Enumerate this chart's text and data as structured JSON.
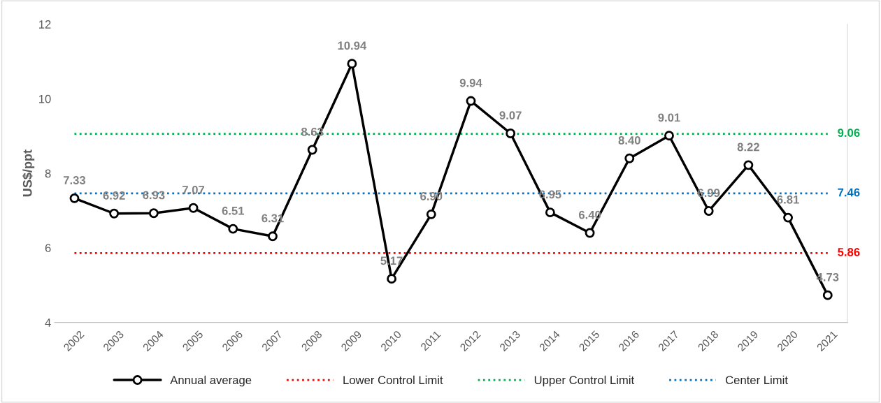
{
  "chart_data": {
    "type": "line",
    "ylabel": "US$/ppt",
    "categories": [
      "2002",
      "2003",
      "2004",
      "2005",
      "2006",
      "2007",
      "2008",
      "2009",
      "2010",
      "2011",
      "2012",
      "2013",
      "2014",
      "2015",
      "2016",
      "2017",
      "2018",
      "2019",
      "2020",
      "2021"
    ],
    "ylim": [
      4,
      12
    ],
    "yticks": [
      4,
      6,
      8,
      10,
      12
    ],
    "grid": false,
    "legend": "bottom",
    "series": [
      {
        "name": "Annual average",
        "color": "#000000",
        "marker": "circle",
        "line_style": "solid",
        "values": [
          7.33,
          6.92,
          6.93,
          7.07,
          6.51,
          6.31,
          8.63,
          10.94,
          5.17,
          6.9,
          9.94,
          9.07,
          6.95,
          6.4,
          8.4,
          9.01,
          6.99,
          8.22,
          6.81,
          4.73
        ],
        "value_labels": [
          "7.33",
          "6.92",
          "6.93",
          "7.07",
          "6.51",
          "6.31",
          "8.63",
          "10.94",
          "5.17",
          "6.90",
          "9.94",
          "9.07",
          "6.95",
          "6.40",
          "8.40",
          "9.01",
          "6.99",
          "8.22",
          "6.81",
          "4.73"
        ]
      },
      {
        "name": "Lower Control Limit",
        "color": "#ff0000",
        "marker": "none",
        "line_style": "dotted",
        "values": [
          5.86,
          5.86,
          5.86,
          5.86,
          5.86,
          5.86,
          5.86,
          5.86,
          5.86,
          5.86,
          5.86,
          5.86,
          5.86,
          5.86,
          5.86,
          5.86,
          5.86,
          5.86,
          5.86,
          5.86
        ],
        "value_labels": [
          null,
          null,
          null,
          null,
          null,
          null,
          null,
          null,
          null,
          null,
          null,
          null,
          null,
          null,
          null,
          null,
          null,
          null,
          null,
          "5.86"
        ]
      },
      {
        "name": "Upper Control Limit",
        "color": "#00b050",
        "marker": "none",
        "line_style": "dotted",
        "values": [
          9.06,
          9.06,
          9.06,
          9.06,
          9.06,
          9.06,
          9.06,
          9.06,
          9.06,
          9.06,
          9.06,
          9.06,
          9.06,
          9.06,
          9.06,
          9.06,
          9.06,
          9.06,
          9.06,
          9.06
        ],
        "value_labels": [
          null,
          null,
          null,
          null,
          null,
          null,
          null,
          null,
          null,
          null,
          null,
          null,
          null,
          null,
          null,
          null,
          null,
          null,
          null,
          "9.06"
        ]
      },
      {
        "name": "Center Limit",
        "color": "#0070c0",
        "marker": "none",
        "line_style": "dotted",
        "values": [
          7.46,
          7.46,
          7.46,
          7.46,
          7.46,
          7.46,
          7.46,
          7.46,
          7.46,
          7.46,
          7.46,
          7.46,
          7.46,
          7.46,
          7.46,
          7.46,
          7.46,
          7.46,
          7.46,
          7.46
        ],
        "value_labels": [
          null,
          null,
          null,
          null,
          null,
          null,
          null,
          null,
          null,
          null,
          null,
          null,
          null,
          null,
          null,
          null,
          null,
          null,
          null,
          "7.46"
        ]
      }
    ]
  }
}
